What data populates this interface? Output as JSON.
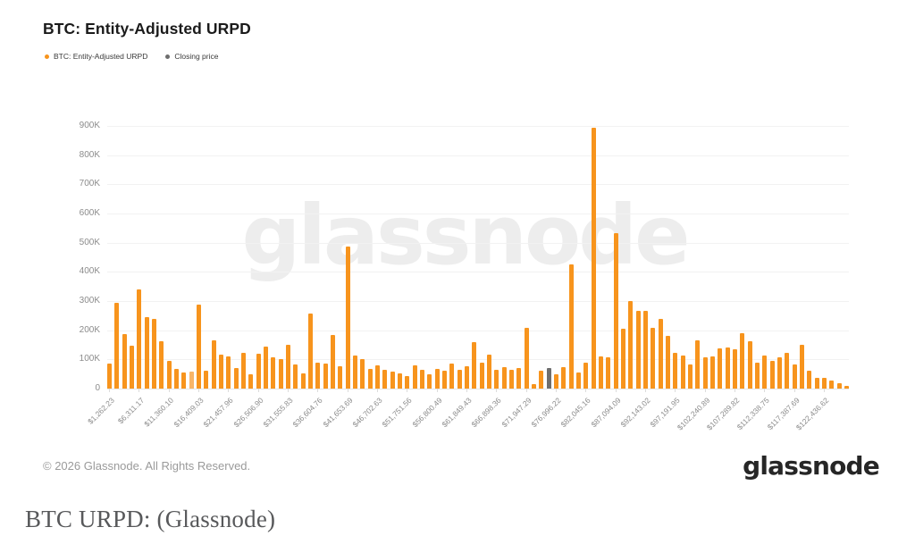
{
  "title": "BTC: Entity-Adjusted URPD",
  "legend": [
    {
      "label": "BTC: Entity-Adjusted URPD",
      "color": "#F7941D"
    },
    {
      "label": "Closing price",
      "color": "#6E6E6E"
    }
  ],
  "watermark": "glassnode",
  "footer": {
    "copyright": "© 2026 Glassnode. All Rights Reserved.",
    "brand": "glassnode"
  },
  "caption": "BTC URPD: (Glassnode)",
  "chart_data": {
    "type": "bar",
    "title": "BTC: Entity-Adjusted URPD",
    "xlabel": "",
    "ylabel": "",
    "ylim": [
      0,
      900000
    ],
    "grid": "horizontal",
    "legend_position": "top-left",
    "y_tick_labels": [
      "900K",
      "800K",
      "700K",
      "600K",
      "500K",
      "400K",
      "300K",
      "200K",
      "100K",
      "0"
    ],
    "x_tick_every_bins": 4,
    "x_tick_labels": [
      "$1,262.23",
      "$6,311.17",
      "$11,360.10",
      "$16,409.03",
      "$21,457.96",
      "$26,506.90",
      "$31,555.83",
      "$36,604.76",
      "$41,653.69",
      "$46,702.63",
      "$51,751.56",
      "$56,800.49",
      "$61,849.43",
      "$66,898.36",
      "$71,947.29",
      "$76,996.22",
      "$82,045.16",
      "$87,094.09",
      "$92,143.02",
      "$97,191.95",
      "$102,240.89",
      "$107,289.82",
      "$112,338.75",
      "$117,387.69",
      "$122,436.62"
    ],
    "values_btc_thousands": [
      87,
      293,
      187,
      148,
      339,
      245,
      238,
      163,
      94,
      68,
      54,
      58,
      288,
      61,
      165,
      117,
      110,
      71,
      122,
      48,
      119,
      143,
      107,
      100,
      150,
      82,
      53,
      258,
      89,
      85,
      184,
      77,
      487,
      112,
      102,
      68,
      81,
      63,
      58,
      53,
      44,
      79,
      63,
      50,
      68,
      60,
      87,
      63,
      76,
      160,
      89,
      116,
      64,
      74,
      64,
      71,
      209,
      15,
      60,
      70,
      50,
      75,
      425,
      55,
      90,
      895,
      110,
      108,
      534,
      206,
      301,
      265,
      267,
      209,
      240,
      181,
      122,
      114,
      84,
      165,
      107,
      110,
      138,
      140,
      135,
      191,
      163,
      89,
      112,
      94,
      107,
      124,
      82,
      150,
      61,
      38,
      36,
      28,
      17,
      8
    ],
    "closing_price_bin": {
      "index_zero_based": 59,
      "value_btc_thousands": 70
    },
    "muted_bar_index_zero_based": 11,
    "colors": {
      "bar": "#F7941D",
      "bar_muted": "#F8B568",
      "closing_bar": "#6E6E6E",
      "grid": "#F2F2F2",
      "axis_text": "#8C8C8C"
    }
  }
}
